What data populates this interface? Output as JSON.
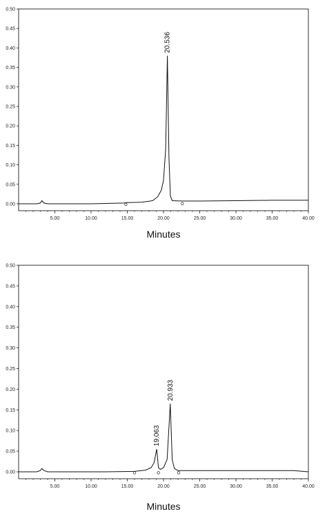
{
  "chart_data": [
    {
      "type": "line",
      "xlabel": "Minutes",
      "ylabel": "",
      "xlim": [
        0,
        40
      ],
      "ylim": [
        0,
        0.5
      ],
      "x_ticks": [
        "5.00",
        "10.00",
        "15.00",
        "20.00",
        "25.00",
        "30.00",
        "35.00",
        "40.00"
      ],
      "y_ticks": [
        "0.00",
        "0.05",
        "0.10",
        "0.15",
        "0.20",
        "0.25",
        "0.30",
        "0.35",
        "0.40",
        "0.45",
        "0.50"
      ],
      "grid": false,
      "series": [
        {
          "x": [
            0,
            2.5,
            3.0,
            3.2,
            3.5,
            4.0,
            10,
            14.5,
            15,
            17,
            18.5,
            19.2,
            19.7,
            20.0,
            20.3,
            20.536,
            20.75,
            20.95,
            21.2,
            22.5,
            25,
            30,
            35,
            40
          ],
          "y": [
            0.0,
            0.0,
            0.002,
            0.008,
            0.002,
            0.0,
            0.0,
            0.002,
            0.003,
            0.004,
            0.008,
            0.018,
            0.035,
            0.06,
            0.14,
            0.38,
            0.12,
            0.02,
            0.008,
            0.007,
            0.007,
            0.008,
            0.009,
            0.009
          ]
        }
      ],
      "annotations": [
        {
          "text": "20.536",
          "x": 20.536,
          "y": 0.38
        }
      ],
      "markers": [
        {
          "x": 14.8,
          "y": 0.002
        },
        {
          "x": 22.6,
          "y": 0.004
        }
      ]
    },
    {
      "type": "line",
      "xlabel": "Minutes",
      "ylabel": "",
      "xlim": [
        0,
        40
      ],
      "ylim": [
        0,
        0.5
      ],
      "x_ticks": [
        "5.00",
        "10.00",
        "15.00",
        "20.00",
        "25.00",
        "30.00",
        "35.00",
        "40.00"
      ],
      "y_ticks": [
        "0.00",
        "0.05",
        "0.10",
        "0.15",
        "0.20",
        "0.25",
        "0.30",
        "0.35",
        "0.40",
        "0.45",
        "0.50"
      ],
      "grid": false,
      "series": [
        {
          "x": [
            0,
            2.5,
            3.0,
            3.2,
            3.5,
            4.0,
            12,
            16,
            17.5,
            18.3,
            18.7,
            19.063,
            19.3,
            19.6,
            20.0,
            20.5,
            20.933,
            21.2,
            21.5,
            22.0,
            25,
            30,
            35,
            38,
            40
          ],
          "y": [
            0.0,
            0.0,
            0.003,
            0.008,
            0.003,
            0.0,
            0.0,
            0.001,
            0.004,
            0.01,
            0.022,
            0.055,
            0.01,
            0.006,
            0.01,
            0.03,
            0.165,
            0.03,
            0.008,
            0.003,
            0.003,
            0.003,
            0.003,
            0.003,
            0.0
          ]
        }
      ],
      "annotations": [
        {
          "text": "19.063",
          "x": 19.063,
          "y": 0.055
        },
        {
          "text": "20.933",
          "x": 20.933,
          "y": 0.165
        }
      ],
      "markers": [
        {
          "x": 16.0,
          "y": 0.001
        },
        {
          "x": 19.3,
          "y": 0.001
        },
        {
          "x": 22.1,
          "y": 0.001
        }
      ]
    }
  ]
}
